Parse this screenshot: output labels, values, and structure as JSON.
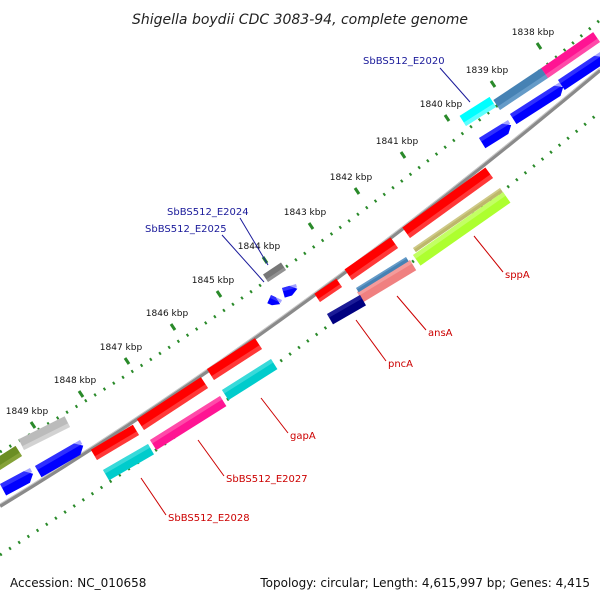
{
  "title": "Shigella boydii CDC 3083-94, complete genome",
  "footer": {
    "accession": "Accession: NC_010658",
    "summary": "Topology: circular; Length: 4,615,997 bp; Genes: 4,415"
  },
  "colors": {
    "backbone": "#8a8a8a",
    "dots": "#2a8a2a",
    "label_blue": "#1a1a9a",
    "label_red": "#cc0000"
  },
  "ticks": [
    {
      "label": "1838 kbp"
    },
    {
      "label": "1839 kbp"
    },
    {
      "label": "1840 kbp"
    },
    {
      "label": "1841 kbp"
    },
    {
      "label": "1842 kbp"
    },
    {
      "label": "1843 kbp"
    },
    {
      "label": "1844 kbp"
    },
    {
      "label": "1845 kbp"
    },
    {
      "label": "1846 kbp"
    },
    {
      "label": "1847 kbp"
    },
    {
      "label": "1848 kbp"
    },
    {
      "label": "1849 kbp"
    }
  ],
  "gene_labels": [
    {
      "name": "SbBS512_E2020",
      "color": "#1a1a9a"
    },
    {
      "name": "SbBS512_E2024",
      "color": "#1a1a9a"
    },
    {
      "name": "SbBS512_E2025",
      "color": "#1a1a9a"
    },
    {
      "name": "sppA",
      "color": "#cc0000"
    },
    {
      "name": "ansA",
      "color": "#cc0000"
    },
    {
      "name": "pncA",
      "color": "#cc0000"
    },
    {
      "name": "gapA",
      "color": "#cc0000"
    },
    {
      "name": "SbBS512_E2027",
      "color": "#cc0000"
    },
    {
      "name": "SbBS512_E2028",
      "color": "#cc0000"
    }
  ]
}
